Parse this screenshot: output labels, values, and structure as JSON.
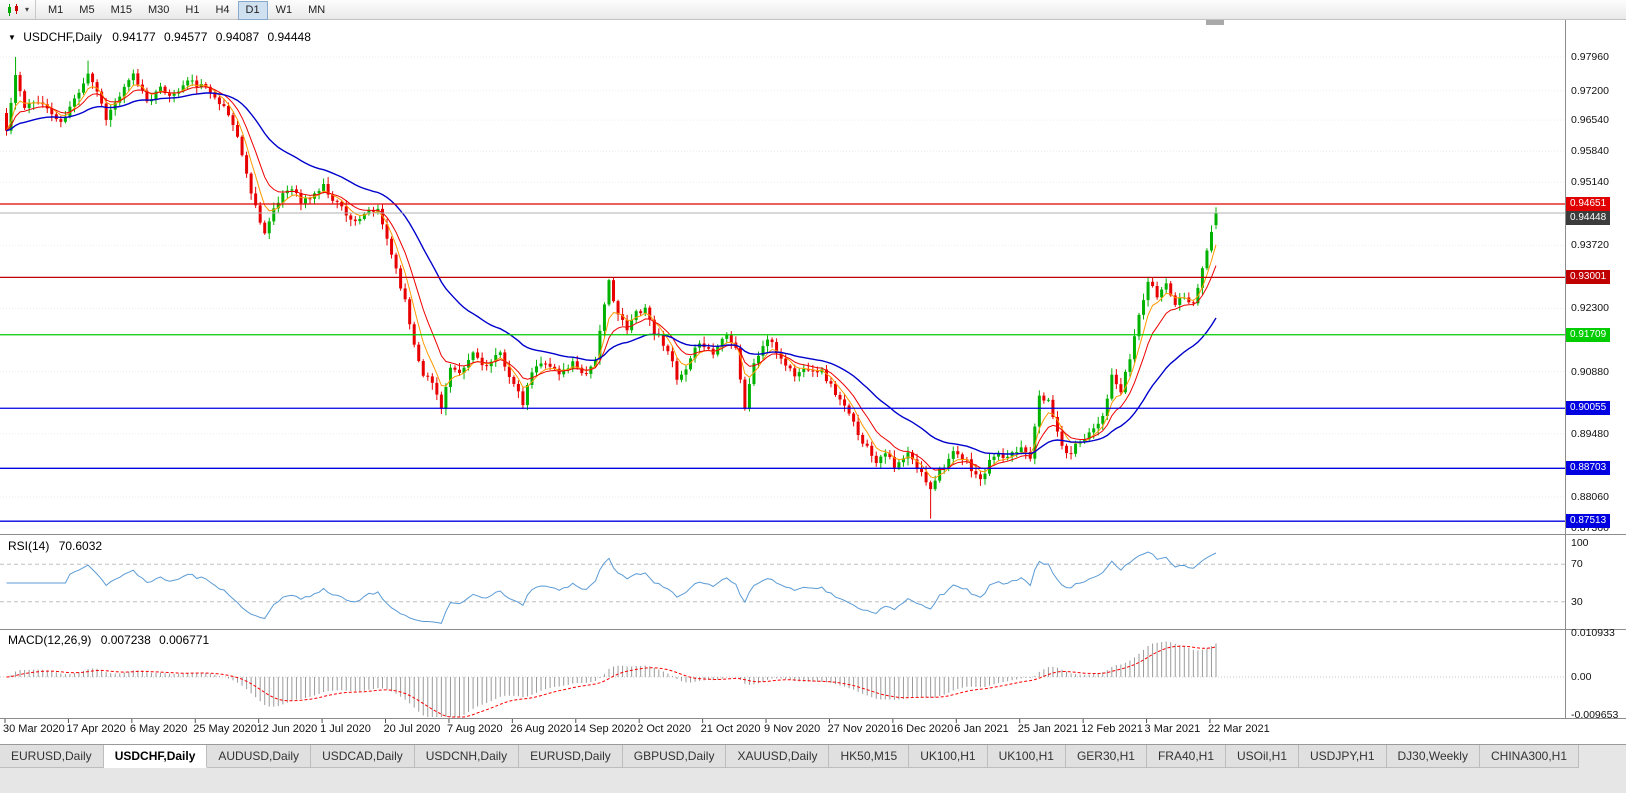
{
  "toolbar": {
    "periods": [
      "M1",
      "M5",
      "M15",
      "M30",
      "H1",
      "H4",
      "D1",
      "W1",
      "MN"
    ],
    "active_period": "D1"
  },
  "chart": {
    "symbol": "USDCHF,Daily",
    "ohlc": {
      "open": "0.94177",
      "high": "0.94577",
      "low": "0.94087",
      "close": "0.94448"
    },
    "price_axis": {
      "labels": [
        "0.97960",
        "0.97200",
        "0.96540",
        "0.95840",
        "0.95140",
        "0.93720",
        "0.92300",
        "0.90880",
        "0.89480",
        "0.88060",
        "0.87360"
      ],
      "min": 0.8736,
      "max": 0.9796
    },
    "current_price": {
      "value": "0.94448",
      "line_color": "#b0b0b0",
      "box_bg": "#3c3c3c"
    },
    "hlines": [
      {
        "price": 0.94651,
        "label": "0.94651",
        "color": "#e00000"
      },
      {
        "price": 0.93001,
        "label": "0.93001",
        "color": "#c00000"
      },
      {
        "price": 0.91709,
        "label": "0.91709",
        "color": "#00cc00"
      },
      {
        "price": 0.90055,
        "label": "0.90055",
        "color": "#0000e0"
      },
      {
        "price": 0.88703,
        "label": "0.88703",
        "color": "#0000e0"
      },
      {
        "price": 0.87513,
        "label": "0.87513",
        "color": "#0000e0"
      }
    ],
    "colors": {
      "bull": "#00b200",
      "bear": "#e80000",
      "ma_fast": "#ff9900",
      "ma_mid": "#ee0000",
      "ma_slow": "#0000cc",
      "grid": "#ececec",
      "rsi_line": "#5b9bd5",
      "rsi_levels": "#c0c0c0",
      "macd_hist": "#9a9a9a",
      "macd_signal": "#ff0000"
    }
  },
  "dates": [
    "30 Mar 2020",
    "17 Apr 2020",
    "6 May 2020",
    "25 May 2020",
    "12 Jun 2020",
    "1 Jul 2020",
    "20 Jul 2020",
    "7 Aug 2020",
    "26 Aug 2020",
    "14 Sep 2020",
    "2 Oct 2020",
    "21 Oct 2020",
    "9 Nov 2020",
    "27 Nov 2020",
    "16 Dec 2020",
    "6 Jan 2021",
    "25 Jan 2021",
    "12 Feb 2021",
    "3 Mar 2021",
    "22 Mar 2021"
  ],
  "rsi": {
    "name": "RSI(14)",
    "value": "70.6032",
    "period": 14,
    "axis_labels": [
      "100",
      "70",
      "30"
    ],
    "levels": [
      70,
      30
    ]
  },
  "macd": {
    "name": "MACD(12,26,9)",
    "macd_value": "0.007238",
    "signal_value": "0.006771",
    "fast": 12,
    "slow": 26,
    "signal": 9,
    "axis_labels": [
      "0.010933",
      "0.00",
      "-0.009653"
    ]
  },
  "tabs": [
    {
      "label": "EURUSD,Daily",
      "active": false
    },
    {
      "label": "USDCHF,Daily",
      "active": true
    },
    {
      "label": "AUDUSD,Daily",
      "active": false
    },
    {
      "label": "USDCAD,Daily",
      "active": false
    },
    {
      "label": "USDCNH,Daily",
      "active": false
    },
    {
      "label": "EURUSD,Daily",
      "active": false
    },
    {
      "label": "GBPUSD,Daily",
      "active": false
    },
    {
      "label": "XAUUSD,Daily",
      "active": false
    },
    {
      "label": "HK50,M15",
      "active": false
    },
    {
      "label": "UK100,H1",
      "active": false
    },
    {
      "label": "UK100,H1",
      "active": false
    },
    {
      "label": "GER30,H1",
      "active": false
    },
    {
      "label": "FRA40,H1",
      "active": false
    },
    {
      "label": "USOil,H1",
      "active": false
    },
    {
      "label": "USDJPY,H1",
      "active": false
    },
    {
      "label": "DJ30,Weekly",
      "active": false
    },
    {
      "label": "CHINA300,H1",
      "active": false
    }
  ],
  "chart_data": {
    "type": "candlestick",
    "symbol": "USDCHF",
    "timeframe": "Daily",
    "x_range_dates": [
      "30 Mar 2020",
      "26 Mar 2021"
    ],
    "y_range": [
      0.8736,
      0.9796
    ],
    "candle_count": 268,
    "close_anchors": [
      [
        0,
        0.963
      ],
      [
        2,
        0.9755
      ],
      [
        4,
        0.968
      ],
      [
        7,
        0.97
      ],
      [
        10,
        0.9668
      ],
      [
        12,
        0.9645
      ],
      [
        15,
        0.97
      ],
      [
        18,
        0.9762
      ],
      [
        20,
        0.972
      ],
      [
        22,
        0.966
      ],
      [
        25,
        0.9708
      ],
      [
        28,
        0.9755
      ],
      [
        31,
        0.97
      ],
      [
        34,
        0.9722
      ],
      [
        37,
        0.971
      ],
      [
        40,
        0.9742
      ],
      [
        43,
        0.973
      ],
      [
        46,
        0.9712
      ],
      [
        49,
        0.9665
      ],
      [
        51,
        0.962
      ],
      [
        53,
        0.953
      ],
      [
        55,
        0.946
      ],
      [
        57,
        0.94
      ],
      [
        59,
        0.9448
      ],
      [
        61,
        0.949
      ],
      [
        63,
        0.9505
      ],
      [
        65,
        0.9468
      ],
      [
        67,
        0.948
      ],
      [
        70,
        0.9505
      ],
      [
        72,
        0.9478
      ],
      [
        74,
        0.9458
      ],
      [
        76,
        0.9432
      ],
      [
        78,
        0.9425
      ],
      [
        80,
        0.945
      ],
      [
        82,
        0.9448
      ],
      [
        84,
        0.9388
      ],
      [
        86,
        0.932
      ],
      [
        88,
        0.9245
      ],
      [
        90,
        0.915
      ],
      [
        92,
        0.9085
      ],
      [
        94,
        0.9062
      ],
      [
        96,
        0.901
      ],
      [
        98,
        0.9095
      ],
      [
        100,
        0.9078
      ],
      [
        103,
        0.913
      ],
      [
        106,
        0.9098
      ],
      [
        109,
        0.9128
      ],
      [
        112,
        0.9058
      ],
      [
        114,
        0.9015
      ],
      [
        116,
        0.9088
      ],
      [
        119,
        0.9112
      ],
      [
        122,
        0.9082
      ],
      [
        125,
        0.9108
      ],
      [
        128,
        0.9082
      ],
      [
        130,
        0.912
      ],
      [
        131,
        0.9175
      ],
      [
        133,
        0.929
      ],
      [
        135,
        0.9218
      ],
      [
        137,
        0.918
      ],
      [
        139,
        0.9222
      ],
      [
        141,
        0.9232
      ],
      [
        143,
        0.9178
      ],
      [
        146,
        0.914
      ],
      [
        148,
        0.9068
      ],
      [
        150,
        0.9088
      ],
      [
        153,
        0.9158
      ],
      [
        156,
        0.9128
      ],
      [
        159,
        0.9178
      ],
      [
        161,
        0.9142
      ],
      [
        163,
        0.9005
      ],
      [
        165,
        0.9108
      ],
      [
        168,
        0.9162
      ],
      [
        171,
        0.9118
      ],
      [
        174,
        0.908
      ],
      [
        177,
        0.9098
      ],
      [
        180,
        0.9088
      ],
      [
        183,
        0.904
      ],
      [
        186,
        0.899
      ],
      [
        189,
        0.8932
      ],
      [
        192,
        0.8888
      ],
      [
        194,
        0.891
      ],
      [
        196,
        0.887
      ],
      [
        199,
        0.8902
      ],
      [
        202,
        0.8858
      ],
      [
        204,
        0.8828
      ],
      [
        206,
        0.8868
      ],
      [
        209,
        0.8902
      ],
      [
        212,
        0.8885
      ],
      [
        215,
        0.8842
      ],
      [
        218,
        0.8902
      ],
      [
        221,
        0.889
      ],
      [
        224,
        0.8918
      ],
      [
        226,
        0.8898
      ],
      [
        228,
        0.904
      ],
      [
        230,
        0.9018
      ],
      [
        232,
        0.8952
      ],
      [
        234,
        0.8898
      ],
      [
        237,
        0.8932
      ],
      [
        240,
        0.8962
      ],
      [
        242,
        0.899
      ],
      [
        244,
        0.9075
      ],
      [
        246,
        0.9042
      ],
      [
        248,
        0.9118
      ],
      [
        250,
        0.9215
      ],
      [
        252,
        0.929
      ],
      [
        254,
        0.9258
      ],
      [
        256,
        0.9288
      ],
      [
        258,
        0.9242
      ],
      [
        260,
        0.9262
      ],
      [
        262,
        0.9238
      ],
      [
        264,
        0.9325
      ],
      [
        266,
        0.9398
      ],
      [
        267,
        0.94448
      ]
    ],
    "last_candle": {
      "open": 0.94177,
      "high": 0.94577,
      "low": 0.94087,
      "close": 0.94448
    },
    "wick_overrides": [
      {
        "i": 2,
        "high": 0.9796
      },
      {
        "i": 18,
        "high": 0.9788
      },
      {
        "i": 163,
        "low": 0.9
      },
      {
        "i": 204,
        "low": 0.8757
      }
    ],
    "hline_levels": [
      0.94651,
      0.93001,
      0.91709,
      0.90055,
      0.88703,
      0.87513
    ],
    "indicators": [
      {
        "type": "moving_averages",
        "periods": [
          5,
          10,
          30
        ],
        "colors": [
          "#ff9900",
          "#ee0000",
          "#0000cc"
        ]
      },
      {
        "type": "rsi",
        "period": 14,
        "last_value": 70.6032,
        "levels": [
          70,
          30
        ]
      },
      {
        "type": "macd",
        "fast": 12,
        "slow": 26,
        "signal": 9,
        "last_macd": 0.007238,
        "last_signal": 0.006771,
        "axis_max": 0.010933,
        "axis_min": -0.009653
      }
    ]
  }
}
